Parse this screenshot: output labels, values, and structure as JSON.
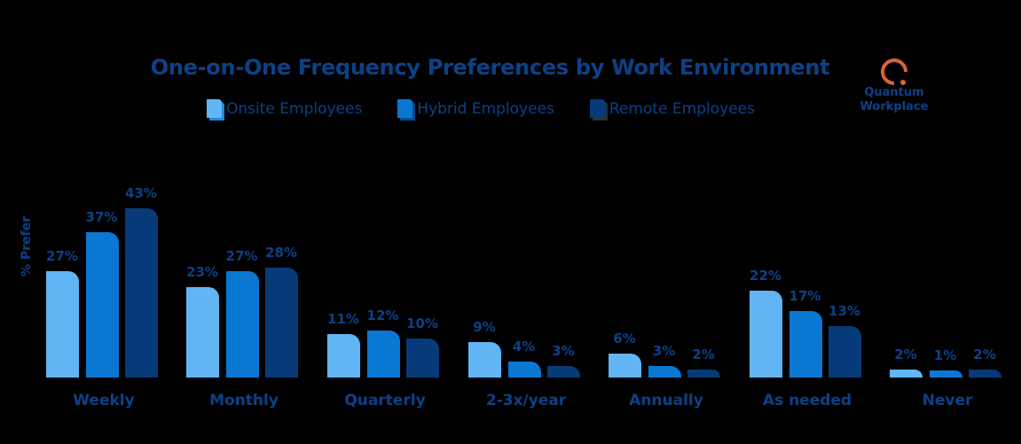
{
  "chart_data": {
    "type": "bar",
    "title": "One-on-One Frequency Preferences by Work Environment",
    "xlabel": "",
    "ylabel": "% Prefer",
    "categories": [
      "Weekly",
      "Monthly",
      "Quarterly",
      "2-3x/year",
      "Annually",
      "As needed",
      "Never"
    ],
    "series": [
      {
        "name": "Onsite Employees",
        "color": "#62b5f5",
        "values": [
          27,
          23,
          11,
          9,
          6,
          22,
          2
        ]
      },
      {
        "name": "Hybrid Employees",
        "color": "#0a78d2",
        "values": [
          37,
          27,
          12,
          4,
          3,
          17,
          1
        ]
      },
      {
        "name": "Remote Employees",
        "color": "#073a78",
        "values": [
          43,
          28,
          10,
          3,
          2,
          13,
          2
        ]
      }
    ],
    "value_suffix": "%",
    "ylim": [
      0,
      45
    ],
    "grid": false,
    "legend_position": "top"
  },
  "title": "One-on-One Frequency Preferences by Work Environment",
  "ylabel": "% Prefer",
  "legend": [
    {
      "label": "Onsite Employees",
      "color": "#62b5f5",
      "side": "#1e88e5"
    },
    {
      "label": "Hybrid Employees",
      "color": "#0a78d2",
      "side": "#094a96"
    },
    {
      "label": "Remote Employees",
      "color": "#073a78",
      "side": "#2a3038"
    }
  ],
  "logo": {
    "line1": "Quantum",
    "line2": "Workplace"
  },
  "colors": {
    "text": "#0c4187",
    "background": "#000000",
    "logo_accent": "#d9643a"
  }
}
